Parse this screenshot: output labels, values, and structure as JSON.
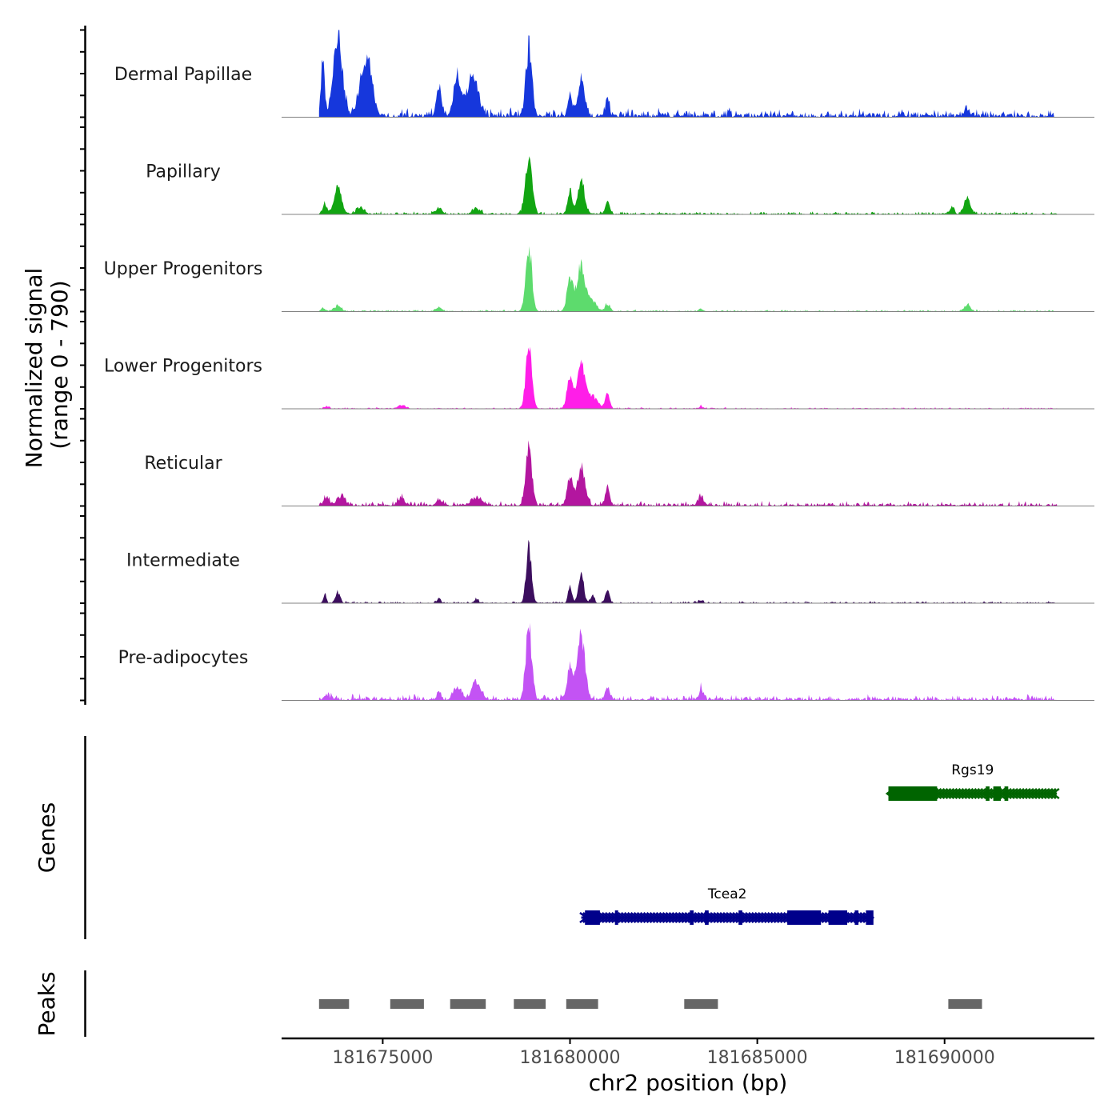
{
  "chart_data": {
    "type": "area",
    "chromosome": "chr2",
    "xlabel": "chr2 position (bp)",
    "ylabel": "Normalized signal",
    "ylabel_range": "(range 0 - 790)",
    "xlim": [
      181672300,
      181694000
    ],
    "xticks": [
      181675000,
      181680000,
      181685000,
      181690000
    ],
    "xtick_labels": [
      "181675000",
      "181680000",
      "181685000",
      "181690000"
    ],
    "data_start": 181673300,
    "data_end": 181693000,
    "ylim": [
      0,
      790
    ],
    "tracks": [
      {
        "name": "Dermal Papillae",
        "color": "#1637dc",
        "baseline": 45,
        "peaks": [
          [
            181673400,
            480,
            50
          ],
          [
            181673800,
            770,
            120
          ],
          [
            181674400,
            190,
            80
          ],
          [
            181674600,
            500,
            130
          ],
          [
            181676500,
            240,
            70
          ],
          [
            181677000,
            330,
            100
          ],
          [
            181677400,
            370,
            140
          ],
          [
            181678900,
            620,
            80
          ],
          [
            181680000,
            190,
            60
          ],
          [
            181680300,
            340,
            90
          ],
          [
            181681000,
            160,
            50
          ],
          [
            181690600,
            50,
            90
          ]
        ]
      },
      {
        "name": "Papillary",
        "color": "#12a512",
        "baseline": 15,
        "peaks": [
          [
            181673450,
            90,
            60
          ],
          [
            181673800,
            240,
            100
          ],
          [
            181674400,
            60,
            100
          ],
          [
            181676500,
            60,
            80
          ],
          [
            181677500,
            50,
            100
          ],
          [
            181678900,
            500,
            90
          ],
          [
            181680000,
            230,
            60
          ],
          [
            181680300,
            310,
            90
          ],
          [
            181681000,
            110,
            60
          ],
          [
            181690200,
            60,
            60
          ],
          [
            181690600,
            150,
            80
          ]
        ]
      },
      {
        "name": "Upper Progenitors",
        "color": "#5ddb6d",
        "baseline": 10,
        "peaks": [
          [
            181673400,
            30,
            60
          ],
          [
            181673800,
            50,
            90
          ],
          [
            181676500,
            40,
            80
          ],
          [
            181678900,
            600,
            80
          ],
          [
            181680000,
            300,
            80
          ],
          [
            181680300,
            430,
            110
          ],
          [
            181680600,
            90,
            100
          ],
          [
            181681000,
            70,
            60
          ],
          [
            181683500,
            20,
            60
          ],
          [
            181690600,
            60,
            80
          ]
        ]
      },
      {
        "name": "Lower Progenitors",
        "color": "#ff1ee8",
        "baseline": 8,
        "peaks": [
          [
            181673500,
            20,
            60
          ],
          [
            181675500,
            30,
            100
          ],
          [
            181678900,
            570,
            80
          ],
          [
            181680000,
            290,
            80
          ],
          [
            181680300,
            390,
            110
          ],
          [
            181680600,
            110,
            140
          ],
          [
            181681000,
            130,
            60
          ],
          [
            181683500,
            20,
            60
          ]
        ]
      },
      {
        "name": "Reticular",
        "color": "#b3169f",
        "baseline": 25,
        "peaks": [
          [
            181673500,
            70,
            80
          ],
          [
            181673900,
            90,
            100
          ],
          [
            181675500,
            60,
            100
          ],
          [
            181676500,
            50,
            80
          ],
          [
            181677500,
            60,
            160
          ],
          [
            181678900,
            560,
            80
          ],
          [
            181680000,
            280,
            70
          ],
          [
            181680300,
            370,
            100
          ],
          [
            181681000,
            160,
            60
          ],
          [
            181683500,
            70,
            80
          ]
        ]
      },
      {
        "name": "Intermediate",
        "color": "#3c0e5e",
        "baseline": 10,
        "peaks": [
          [
            181673450,
            80,
            40
          ],
          [
            181673800,
            90,
            60
          ],
          [
            181676500,
            40,
            50
          ],
          [
            181677500,
            30,
            60
          ],
          [
            181678900,
            520,
            70
          ],
          [
            181680000,
            160,
            50
          ],
          [
            181680300,
            260,
            70
          ],
          [
            181680600,
            70,
            50
          ],
          [
            181681000,
            140,
            50
          ],
          [
            181683500,
            20,
            50
          ]
        ]
      },
      {
        "name": "Pre-adipocytes",
        "color": "#c353f4",
        "baseline": 30,
        "peaks": [
          [
            181673500,
            40,
            80
          ],
          [
            181676500,
            70,
            60
          ],
          [
            181677000,
            120,
            100
          ],
          [
            181677500,
            170,
            120
          ],
          [
            181678900,
            660,
            80
          ],
          [
            181680000,
            300,
            80
          ],
          [
            181680300,
            580,
            100
          ],
          [
            181681000,
            100,
            60
          ],
          [
            181683500,
            100,
            60
          ]
        ]
      }
    ],
    "genes": [
      {
        "name": "Rgs19",
        "color": "#006400",
        "strand": "-",
        "start": 181688500,
        "end": 181693000,
        "exons": [
          [
            181688500,
            181689800
          ],
          [
            181691100,
            181691200
          ],
          [
            181691300,
            181691500
          ],
          [
            181691600,
            181691700
          ]
        ]
      },
      {
        "name": "Tcea2",
        "color": "#00008b",
        "strand": "+",
        "start": 181680300,
        "end": 181688100,
        "exons": [
          [
            181680400,
            181680800
          ],
          [
            181681200,
            181681250
          ],
          [
            181683200,
            181683300
          ],
          [
            181683600,
            181683700
          ],
          [
            181684500,
            181684600
          ],
          [
            181685800,
            181686700
          ],
          [
            181686900,
            181687400
          ],
          [
            181687600,
            181687700
          ],
          [
            181687900,
            181688100
          ]
        ]
      }
    ],
    "genes_label": "Genes",
    "peaks_label": "Peaks",
    "peak_regions": [
      [
        181673300,
        181674100
      ],
      [
        181675200,
        181676100
      ],
      [
        181676800,
        181677750
      ],
      [
        181678500,
        181679350
      ],
      [
        181679900,
        181680750
      ],
      [
        181683050,
        181683950
      ],
      [
        181690100,
        181691000
      ]
    ]
  }
}
